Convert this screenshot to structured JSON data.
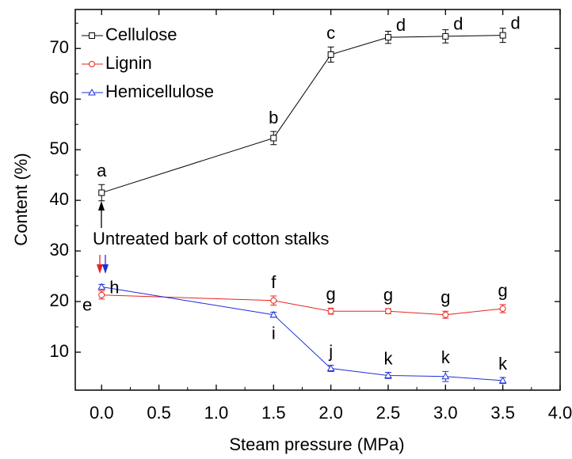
{
  "chart_data": {
    "type": "line",
    "xlabel": "Steam pressure (MPa)",
    "ylabel": "Content (%)",
    "x": [
      0,
      1.5,
      2.0,
      2.5,
      3.0,
      3.5
    ],
    "series": [
      {
        "name": "Cellulose",
        "color": "#000000",
        "marker": "square",
        "values": [
          41.5,
          52.3,
          68.8,
          72.2,
          72.4,
          72.6
        ],
        "errors": [
          1.6,
          1.3,
          1.5,
          1.2,
          1.3,
          1.4
        ],
        "letters": [
          "a",
          "b",
          "c",
          "d",
          "d",
          "d"
        ]
      },
      {
        "name": "Lignin",
        "color": "#e8231f",
        "marker": "circle",
        "values": [
          21.3,
          20.2,
          18.1,
          18.1,
          17.4,
          18.6
        ],
        "errors": [
          0.8,
          0.9,
          0.6,
          0.5,
          0.7,
          0.8
        ],
        "letters": [
          "e",
          "f",
          "g",
          "g",
          "g",
          "g"
        ]
      },
      {
        "name": "Hemicellulose",
        "color": "#1f2fd8",
        "marker": "triangle",
        "values": [
          22.9,
          17.4,
          6.8,
          5.4,
          5.2,
          4.4
        ],
        "errors": [
          0.5,
          0.5,
          0.6,
          0.6,
          1.0,
          0.6
        ],
        "letters": [
          "h",
          "i",
          "j",
          "k",
          "k",
          "k"
        ]
      }
    ],
    "annotation": "Untreated bark of cotton stalks",
    "xlim": [
      -0.23,
      4.0
    ],
    "xticks": [
      {
        "value": 0,
        "label": "0.0"
      },
      0.5,
      {
        "value": 1,
        "label": "1.0"
      },
      1.5,
      {
        "value": 2,
        "label": "2.0"
      },
      2.5,
      {
        "value": 3,
        "label": "3.0"
      },
      3.5,
      {
        "value": 4,
        "label": "4.0"
      }
    ],
    "ylim": [
      2.5,
      77.7
    ],
    "yticks": [
      10,
      20,
      30,
      40,
      50,
      60,
      70
    ],
    "legend": "upper left"
  }
}
